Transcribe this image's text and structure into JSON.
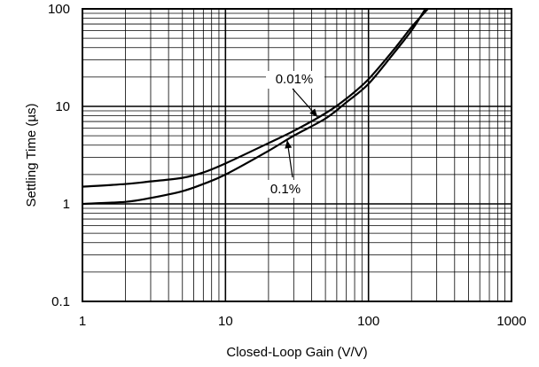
{
  "chart_data": {
    "type": "line",
    "title": "",
    "xlabel": "Closed-Loop Gain (V/V)",
    "ylabel": "Settling Time (µs)",
    "xscale": "log",
    "yscale": "log",
    "xlim": [
      1,
      1000
    ],
    "ylim": [
      0.1,
      100
    ],
    "grid": true,
    "x_ticks": [
      1,
      10,
      100,
      1000
    ],
    "x_tick_labels": [
      "1",
      "10",
      "100",
      "1000"
    ],
    "y_ticks": [
      0.1,
      1,
      10,
      100
    ],
    "y_tick_labels": [
      "0.1",
      "1",
      "10",
      "100"
    ],
    "series": [
      {
        "name": "0.01%",
        "x": [
          1,
          2,
          3,
          5,
          7,
          10,
          20,
          30,
          50,
          70,
          100,
          150,
          200,
          260
        ],
        "y": [
          1.5,
          1.6,
          1.7,
          1.85,
          2.1,
          2.6,
          4.2,
          5.6,
          8.5,
          12,
          19,
          38,
          65,
          100
        ]
      },
      {
        "name": "0.1%",
        "x": [
          1,
          2,
          3,
          5,
          7,
          10,
          20,
          30,
          50,
          70,
          100,
          150,
          200,
          250
        ],
        "y": [
          1.0,
          1.05,
          1.15,
          1.35,
          1.6,
          2.0,
          3.5,
          5.0,
          7.5,
          11,
          17,
          35,
          60,
          100
        ]
      }
    ],
    "annotations": [
      {
        "text": "0.01%",
        "series": "0.01%",
        "arrow_to": [
          44,
          7.8
        ]
      },
      {
        "text": "0.1%",
        "series": "0.1%",
        "arrow_to": [
          27,
          4.5
        ]
      }
    ]
  }
}
